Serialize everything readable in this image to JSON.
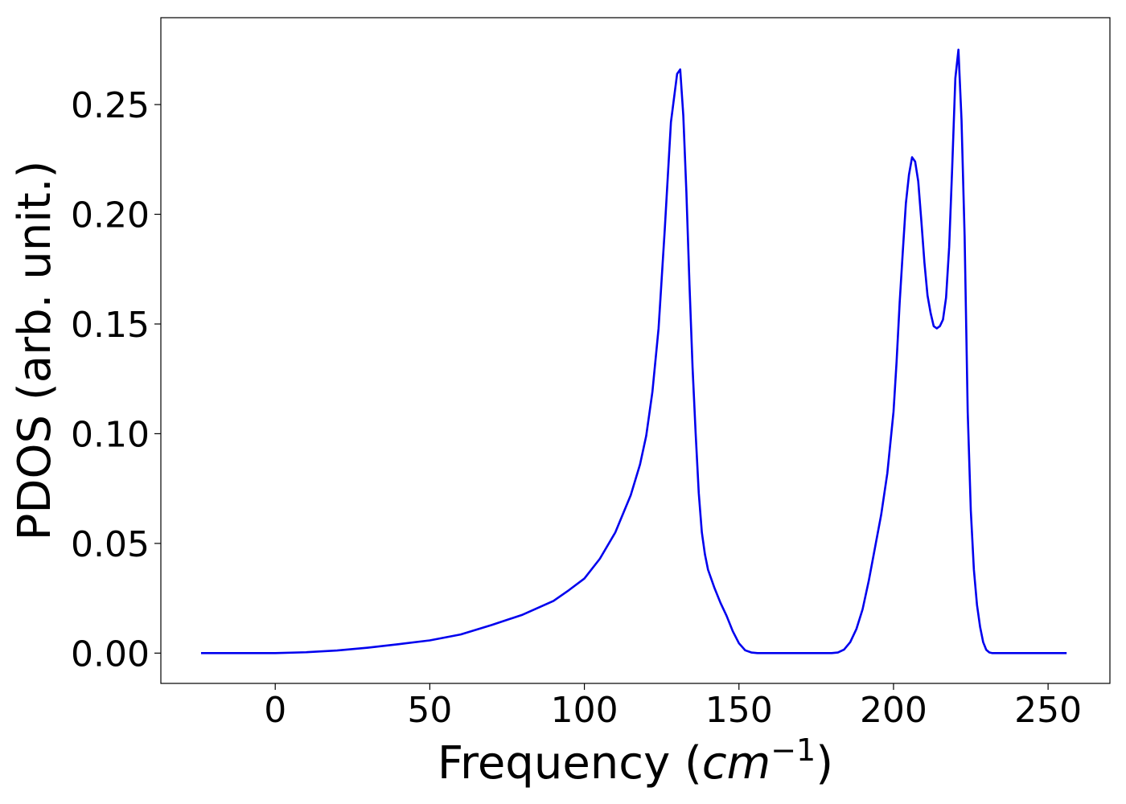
{
  "chart_data": {
    "type": "line",
    "title": "",
    "xlabel": "Frequency",
    "xlabel_unit_base": "cm",
    "xlabel_unit_exponent": "−1",
    "ylabel": "PDOS (arb. unit.)",
    "xlim": [
      -37,
      270
    ],
    "ylim": [
      -0.0138,
      0.2896
    ],
    "x_ticks": [
      0,
      50,
      100,
      150,
      200,
      250
    ],
    "x_tick_labels": [
      "0",
      "50",
      "100",
      "150",
      "200",
      "250"
    ],
    "y_ticks": [
      0.0,
      0.05,
      0.1,
      0.15,
      0.2,
      0.25
    ],
    "y_tick_labels": [
      "0.00",
      "0.05",
      "0.10",
      "0.15",
      "0.20",
      "0.25"
    ],
    "grid": false,
    "legend": "none",
    "series": [
      {
        "color": "#0000ee",
        "x": [
          -24,
          -10,
          0,
          10,
          20,
          30,
          40,
          50,
          60,
          70,
          80,
          90,
          95,
          100,
          105,
          110,
          115,
          118,
          120,
          122,
          124,
          126,
          128,
          130,
          131,
          132,
          133,
          134,
          135,
          136,
          137,
          138,
          139,
          140,
          142,
          144,
          146,
          148,
          150,
          152,
          154,
          156,
          158,
          160,
          170,
          180,
          182,
          184,
          186,
          188,
          190,
          192,
          194,
          196,
          198,
          200,
          201,
          202,
          203,
          204,
          205,
          206,
          207,
          208,
          209,
          210,
          211,
          212,
          213,
          214,
          215,
          216,
          217,
          218,
          219,
          220,
          221,
          222,
          223,
          224,
          225,
          226,
          227,
          228,
          229,
          230,
          231,
          232,
          233,
          234,
          235,
          236,
          238,
          240,
          256
        ],
        "y": [
          0.0,
          0.0,
          0.0,
          0.0004,
          0.0012,
          0.0025,
          0.0041,
          0.0058,
          0.0085,
          0.0128,
          0.0175,
          0.0238,
          0.0287,
          0.034,
          0.043,
          0.055,
          0.072,
          0.086,
          0.099,
          0.119,
          0.148,
          0.193,
          0.242,
          0.264,
          0.266,
          0.245,
          0.21,
          0.168,
          0.13,
          0.1,
          0.073,
          0.055,
          0.045,
          0.038,
          0.03,
          0.023,
          0.017,
          0.01,
          0.0045,
          0.0013,
          0.0003,
          0.0,
          0.0,
          0.0,
          0.0,
          0.0,
          0.0003,
          0.0016,
          0.005,
          0.011,
          0.02,
          0.033,
          0.048,
          0.063,
          0.082,
          0.11,
          0.133,
          0.16,
          0.183,
          0.205,
          0.218,
          0.226,
          0.224,
          0.215,
          0.197,
          0.178,
          0.163,
          0.155,
          0.149,
          0.148,
          0.149,
          0.152,
          0.162,
          0.185,
          0.222,
          0.262,
          0.275,
          0.243,
          0.19,
          0.11,
          0.065,
          0.038,
          0.022,
          0.012,
          0.005,
          0.0015,
          0.0003,
          0.0,
          0.0,
          0.0,
          0.0,
          0.0,
          0.0,
          0.0,
          0.0
        ]
      }
    ]
  }
}
